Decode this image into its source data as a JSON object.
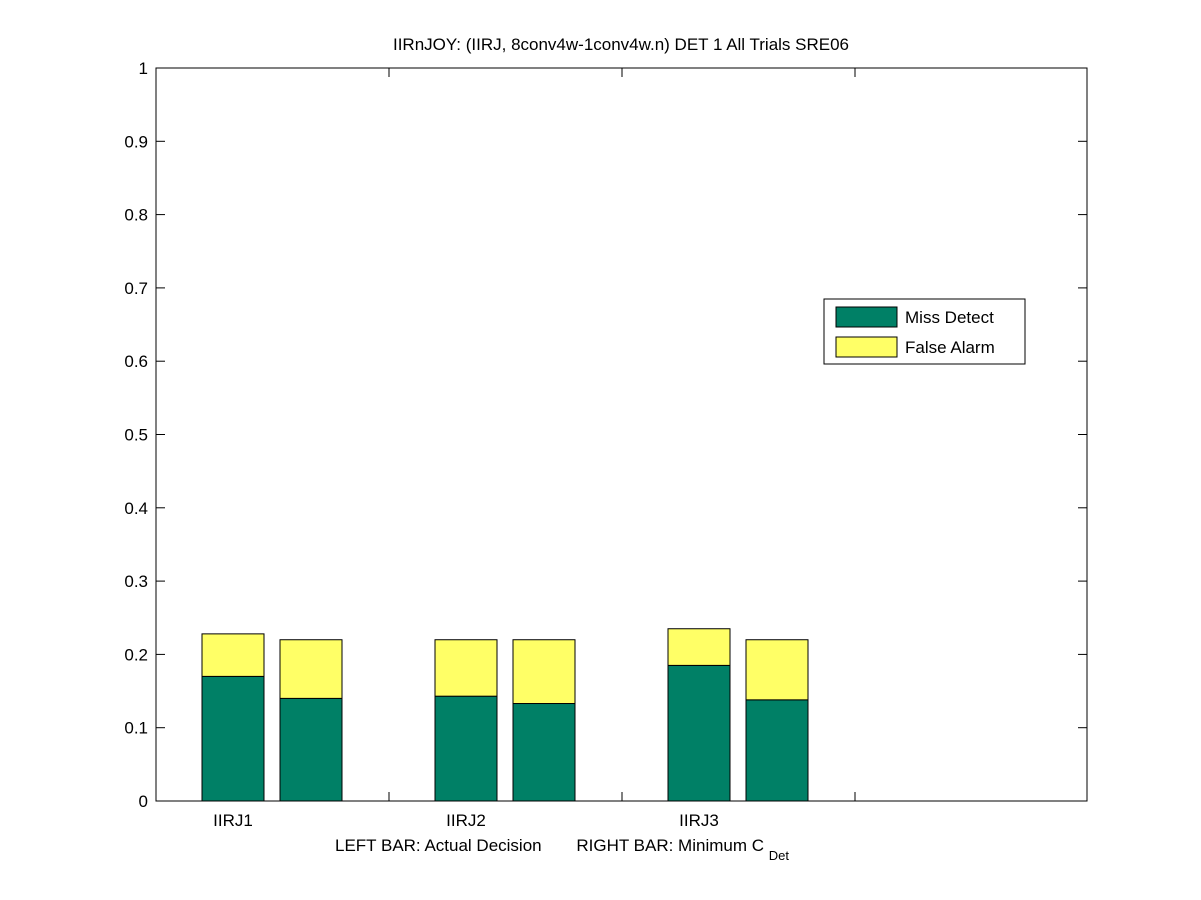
{
  "chart_data": {
    "type": "bar",
    "stacked": true,
    "title": "IIRnJOY: (IIRJ, 8conv4w-1conv4w.n) DET 1 All Trials SRE06",
    "xlabel": {
      "left": "LEFT BAR: Actual Decision",
      "right_prefix": "RIGHT BAR: Minimum C",
      "right_sub": "Det"
    },
    "ylabel": "",
    "ylim": [
      0,
      1
    ],
    "yticks": [
      "0",
      "0.1",
      "0.2",
      "0.3",
      "0.4",
      "0.5",
      "0.6",
      "0.7",
      "0.8",
      "0.9",
      "1"
    ],
    "categories": [
      "IIRJ1",
      "IIRJ2",
      "IIRJ3"
    ],
    "series": [
      {
        "name": "Miss Detect",
        "color": "#008066",
        "actual": [
          0.17,
          0.143,
          0.185
        ],
        "minimum": [
          0.14,
          0.133,
          0.138
        ]
      },
      {
        "name": "False Alarm",
        "color": "#ffff66",
        "actual": [
          0.058,
          0.077,
          0.05
        ],
        "minimum": [
          0.08,
          0.087,
          0.082
        ]
      }
    ],
    "legend_position": "right",
    "grid": false
  }
}
